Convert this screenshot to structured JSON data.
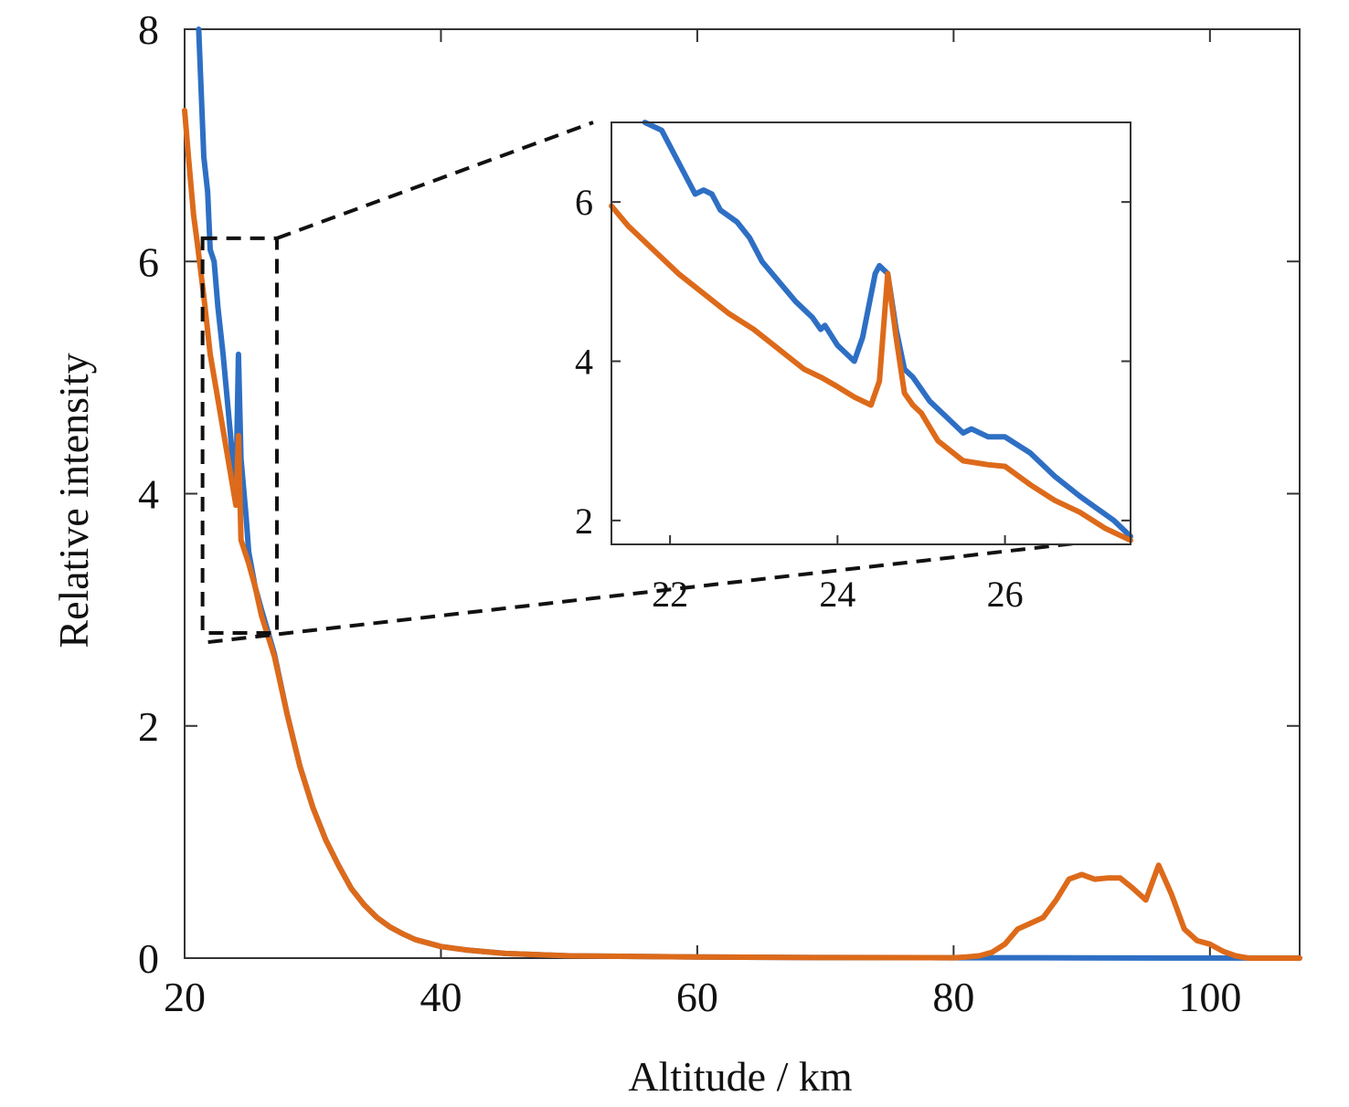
{
  "chart_data": {
    "type": "line",
    "xlabel": "Altitude / km",
    "ylabel": "Relative intensity",
    "xlim": [
      20,
      107
    ],
    "ylim": [
      0,
      8
    ],
    "xticks": [
      20,
      40,
      60,
      80,
      100
    ],
    "yticks": [
      0,
      2,
      4,
      6,
      8
    ],
    "grid": false,
    "colors": {
      "blue": "#2e6fc4",
      "orange": "#dd6a1a",
      "box": "#111111"
    },
    "series": [
      {
        "color": "#2e6fc4",
        "points": [
          [
            21.1,
            8.0
          ],
          [
            21.5,
            6.9
          ],
          [
            21.8,
            6.6
          ],
          [
            22.0,
            6.1
          ],
          [
            22.3,
            6.0
          ],
          [
            22.6,
            5.6
          ],
          [
            23.0,
            5.2
          ],
          [
            23.5,
            4.6
          ],
          [
            24.0,
            4.0
          ],
          [
            24.2,
            5.2
          ],
          [
            24.4,
            4.3
          ],
          [
            24.8,
            3.8
          ],
          [
            25.0,
            3.5
          ],
          [
            25.5,
            3.2
          ],
          [
            26.0,
            3.0
          ],
          [
            27.0,
            2.62
          ],
          [
            28.0,
            2.1
          ],
          [
            29.0,
            1.65
          ],
          [
            30.0,
            1.3
          ],
          [
            31.0,
            1.02
          ],
          [
            32.0,
            0.8
          ],
          [
            33.0,
            0.6
          ],
          [
            34.0,
            0.46
          ],
          [
            35.0,
            0.35
          ],
          [
            36.0,
            0.27
          ],
          [
            37.0,
            0.21
          ],
          [
            38.0,
            0.16
          ],
          [
            40.0,
            0.1
          ],
          [
            42.0,
            0.07
          ],
          [
            45.0,
            0.04
          ],
          [
            50.0,
            0.02
          ],
          [
            60.0,
            0.01
          ],
          [
            70.0,
            0.005
          ],
          [
            80.0,
            0.003
          ],
          [
            90.0,
            0.002
          ],
          [
            100.0,
            0.001
          ],
          [
            107.0,
            0.001
          ]
        ]
      },
      {
        "color": "#dd6a1a",
        "points": [
          [
            20.0,
            7.3
          ],
          [
            20.3,
            6.9
          ],
          [
            20.7,
            6.4
          ],
          [
            21.0,
            6.15
          ],
          [
            21.5,
            5.7
          ],
          [
            22.0,
            5.2
          ],
          [
            23.0,
            4.55
          ],
          [
            24.0,
            3.9
          ],
          [
            24.2,
            4.5
          ],
          [
            24.4,
            3.6
          ],
          [
            25.0,
            3.4
          ],
          [
            25.5,
            3.2
          ],
          [
            26.0,
            2.95
          ],
          [
            27.0,
            2.6
          ],
          [
            28.0,
            2.1
          ],
          [
            29.0,
            1.65
          ],
          [
            30.0,
            1.3
          ],
          [
            31.0,
            1.02
          ],
          [
            32.0,
            0.8
          ],
          [
            33.0,
            0.6
          ],
          [
            34.0,
            0.46
          ],
          [
            35.0,
            0.35
          ],
          [
            36.0,
            0.27
          ],
          [
            37.0,
            0.21
          ],
          [
            38.0,
            0.16
          ],
          [
            40.0,
            0.1
          ],
          [
            42.0,
            0.07
          ],
          [
            45.0,
            0.04
          ],
          [
            50.0,
            0.02
          ],
          [
            60.0,
            0.01
          ],
          [
            70.0,
            0.005
          ],
          [
            80.0,
            0.003
          ],
          [
            81.0,
            0.01
          ],
          [
            82.0,
            0.02
          ],
          [
            83.0,
            0.05
          ],
          [
            84.0,
            0.12
          ],
          [
            85.0,
            0.25
          ],
          [
            86.0,
            0.3
          ],
          [
            87.0,
            0.35
          ],
          [
            88.0,
            0.5
          ],
          [
            89.0,
            0.68
          ],
          [
            90.0,
            0.72
          ],
          [
            91.0,
            0.68
          ],
          [
            92.0,
            0.69
          ],
          [
            93.0,
            0.69
          ],
          [
            94.0,
            0.6
          ],
          [
            95.0,
            0.5
          ],
          [
            96.0,
            0.8
          ],
          [
            97.0,
            0.55
          ],
          [
            98.0,
            0.25
          ],
          [
            99.0,
            0.15
          ],
          [
            100.0,
            0.12
          ],
          [
            101.0,
            0.06
          ],
          [
            102.0,
            0.02
          ],
          [
            103.0,
            0.0
          ],
          [
            107.0,
            0.0
          ]
        ]
      }
    ],
    "zoom_box": {
      "xlim": [
        21.4,
        27.2
      ],
      "ylim": [
        2.8,
        6.2
      ]
    },
    "inset": {
      "xlim": [
        21.3,
        27.5
      ],
      "ylim": [
        1.7,
        7.0
      ],
      "xticks": [
        22,
        24,
        26
      ],
      "yticks": [
        2,
        4,
        6
      ],
      "series": [
        {
          "color": "#2e6fc4",
          "points": [
            [
              21.7,
              7.0
            ],
            [
              21.9,
              6.9
            ],
            [
              22.1,
              6.5
            ],
            [
              22.3,
              6.1
            ],
            [
              22.4,
              6.15
            ],
            [
              22.5,
              6.1
            ],
            [
              22.6,
              5.9
            ],
            [
              22.8,
              5.75
            ],
            [
              22.95,
              5.55
            ],
            [
              23.1,
              5.25
            ],
            [
              23.3,
              5.0
            ],
            [
              23.5,
              4.75
            ],
            [
              23.6,
              4.65
            ],
            [
              23.7,
              4.55
            ],
            [
              23.8,
              4.4
            ],
            [
              23.85,
              4.45
            ],
            [
              24.0,
              4.2
            ],
            [
              24.2,
              4.0
            ],
            [
              24.3,
              4.3
            ],
            [
              24.45,
              5.1
            ],
            [
              24.5,
              5.2
            ],
            [
              24.6,
              5.1
            ],
            [
              24.7,
              4.4
            ],
            [
              24.8,
              3.9
            ],
            [
              24.9,
              3.8
            ],
            [
              25.0,
              3.65
            ],
            [
              25.1,
              3.5
            ],
            [
              25.3,
              3.3
            ],
            [
              25.5,
              3.1
            ],
            [
              25.6,
              3.15
            ],
            [
              25.8,
              3.05
            ],
            [
              26.0,
              3.05
            ],
            [
              26.3,
              2.85
            ],
            [
              26.6,
              2.55
            ],
            [
              26.9,
              2.3
            ],
            [
              27.1,
              2.15
            ],
            [
              27.3,
              2.0
            ],
            [
              27.5,
              1.8
            ]
          ]
        },
        {
          "color": "#dd6a1a",
          "points": [
            [
              21.3,
              5.95
            ],
            [
              21.5,
              5.7
            ],
            [
              21.8,
              5.4
            ],
            [
              22.1,
              5.1
            ],
            [
              22.4,
              4.85
            ],
            [
              22.7,
              4.6
            ],
            [
              23.0,
              4.4
            ],
            [
              23.3,
              4.15
            ],
            [
              23.6,
              3.9
            ],
            [
              23.8,
              3.8
            ],
            [
              24.0,
              3.68
            ],
            [
              24.2,
              3.55
            ],
            [
              24.4,
              3.45
            ],
            [
              24.5,
              3.75
            ],
            [
              24.6,
              5.1
            ],
            [
              24.7,
              4.3
            ],
            [
              24.8,
              3.6
            ],
            [
              24.9,
              3.45
            ],
            [
              25.0,
              3.35
            ],
            [
              25.2,
              3.0
            ],
            [
              25.5,
              2.75
            ],
            [
              25.8,
              2.7
            ],
            [
              26.0,
              2.68
            ],
            [
              26.3,
              2.45
            ],
            [
              26.6,
              2.25
            ],
            [
              26.9,
              2.1
            ],
            [
              27.2,
              1.9
            ],
            [
              27.5,
              1.75
            ]
          ]
        }
      ]
    }
  }
}
